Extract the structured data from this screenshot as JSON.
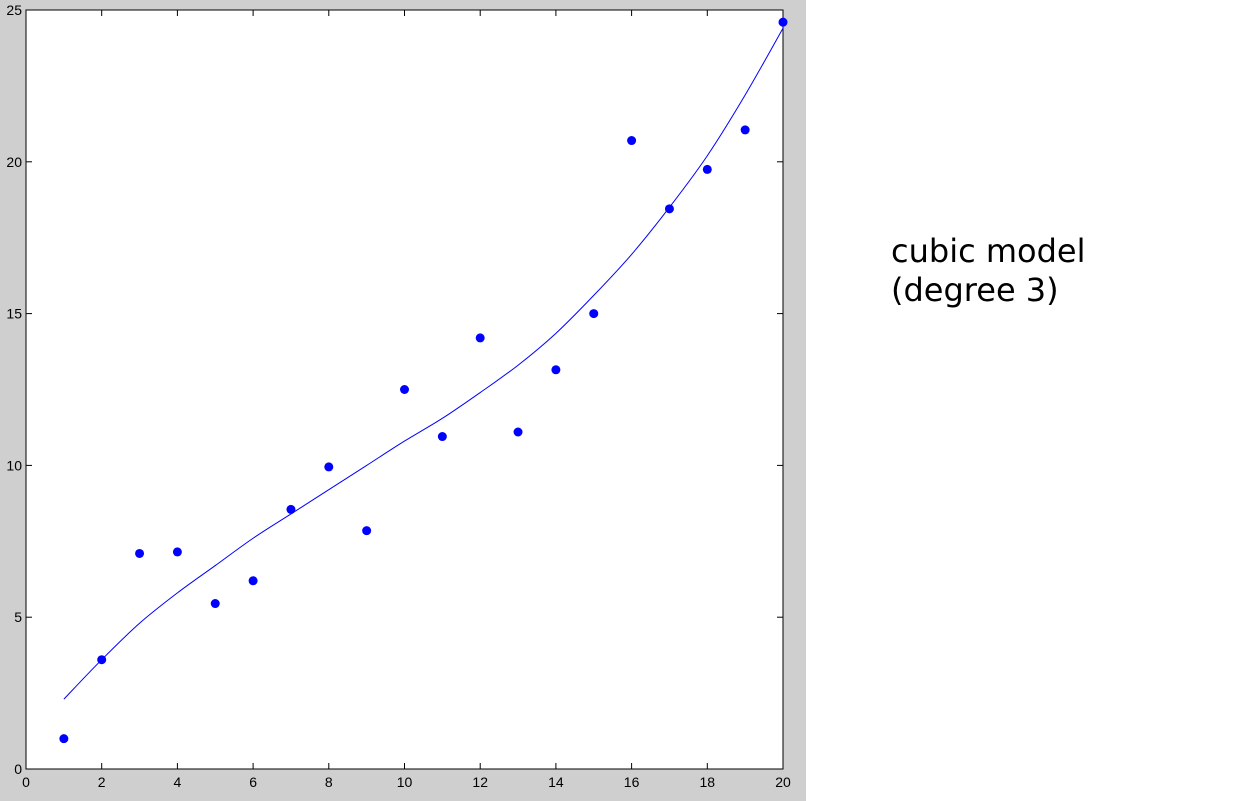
{
  "caption": {
    "line1": "cubic model",
    "line2": "(degree 3)"
  },
  "colors": {
    "background": "#ffffff",
    "frame": "#cfcfcf",
    "points": "#0000ff",
    "fit_line": "#0000ff"
  },
  "chart_data": {
    "type": "scatter",
    "title": "",
    "xlabel": "",
    "ylabel": "",
    "xlim": [
      0,
      20
    ],
    "ylim": [
      0,
      25
    ],
    "xticks": [
      0,
      2,
      4,
      6,
      8,
      10,
      12,
      14,
      16,
      18,
      20
    ],
    "yticks": [
      0,
      5,
      10,
      15,
      20,
      25
    ],
    "grid": false,
    "legend": "none",
    "series": [
      {
        "kind": "points",
        "x": [
          1,
          2,
          3,
          4,
          5,
          6,
          7,
          8,
          9,
          10,
          11,
          12,
          13,
          14,
          15,
          16,
          17,
          18,
          19,
          20
        ],
        "y": [
          1.0,
          3.6,
          7.1,
          7.15,
          5.45,
          6.2,
          8.55,
          9.95,
          7.85,
          12.5,
          10.95,
          14.2,
          11.1,
          13.15,
          15.0,
          20.7,
          18.45,
          19.75,
          21.05,
          24.6
        ]
      },
      {
        "kind": "fit",
        "x": [
          1,
          2,
          3,
          4,
          5,
          6,
          7,
          8,
          9,
          10,
          11,
          12,
          13,
          14,
          15,
          16,
          17,
          18,
          19,
          20
        ],
        "y": [
          2.3,
          3.6,
          4.8,
          5.8,
          6.7,
          7.6,
          8.4,
          9.2,
          10.0,
          10.8,
          11.55,
          12.4,
          13.3,
          14.35,
          15.6,
          16.95,
          18.5,
          20.2,
          22.2,
          24.4
        ]
      }
    ]
  }
}
